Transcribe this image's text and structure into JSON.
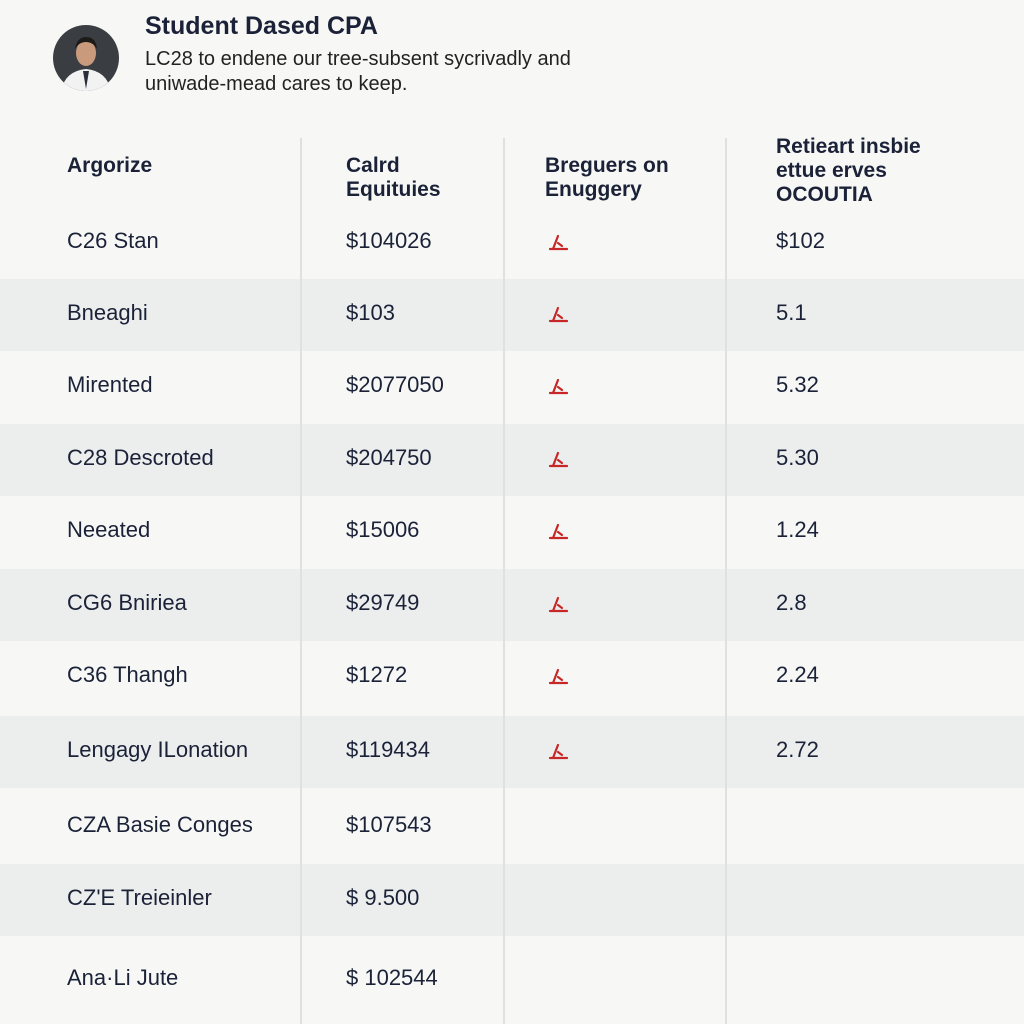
{
  "header": {
    "title": "Student Dased CPA",
    "subtitle": [
      "LC28 to endene our tree-subsent sycrivadly and",
      "uniwade-mead cares to keep."
    ]
  },
  "table": {
    "columns": [
      [
        "Argorize"
      ],
      [
        "Calrd",
        "Equituies"
      ],
      [
        "Breguers on",
        "Enuggery"
      ],
      [
        "Retieart insbie",
        "ettue erves",
        "OCOUTIA"
      ]
    ],
    "rows": [
      [
        "C26 Stan",
        "$104026",
        "$102"
      ],
      [
        "Bneaghi",
        "$103",
        "5.1"
      ],
      [
        "Mirented",
        "$2077050",
        "5.32"
      ],
      [
        "C28 Descroted",
        "$204750",
        "5.30"
      ],
      [
        "Neeated",
        "$15006",
        "1.24"
      ],
      [
        "CG6 Bniriea",
        "$29749",
        "2.8"
      ],
      [
        "C36 Thangh",
        "$1272",
        "2.24"
      ],
      [
        "Lengagy ILonation",
        "$119434",
        "2.72"
      ],
      [
        "CZA Basie Conges",
        "$107543"
      ],
      [
        "CZ'E Treieinler",
        "$ 9.500"
      ],
      [
        "Ana·Li Jute",
        "$ 102544"
      ]
    ]
  }
}
